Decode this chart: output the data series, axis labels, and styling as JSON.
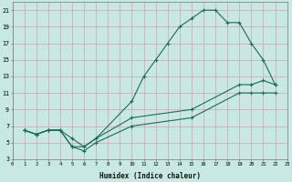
{
  "xlabel": "Humidex (Indice chaleur)",
  "bg_color": "#c8e8e4",
  "grid_color": "#d4a0a8",
  "line_color": "#1a6b5a",
  "xlim": [
    0,
    23
  ],
  "ylim": [
    3,
    22
  ],
  "xtick_vals": [
    0,
    1,
    2,
    3,
    4,
    5,
    6,
    7,
    8,
    9,
    10,
    11,
    12,
    13,
    14,
    15,
    16,
    17,
    18,
    19,
    20,
    21,
    22,
    23
  ],
  "ytick_vals": [
    3,
    5,
    7,
    9,
    11,
    13,
    15,
    17,
    19,
    21
  ],
  "line1_x": [
    1,
    2,
    3,
    4,
    5,
    6,
    7,
    10,
    11,
    12,
    13,
    14,
    15,
    16,
    17,
    18,
    19,
    20,
    21,
    22
  ],
  "line1_y": [
    6.5,
    6.0,
    6.5,
    6.5,
    5.5,
    4.5,
    5.5,
    10.0,
    13.0,
    15.0,
    17.0,
    19.0,
    20.0,
    21.0,
    21.0,
    19.5,
    19.5,
    17.0,
    15.0,
    12.0
  ],
  "line2_x": [
    1,
    2,
    3,
    4,
    5,
    6,
    7,
    10,
    15,
    19,
    20,
    21,
    22
  ],
  "line2_y": [
    6.5,
    6.0,
    6.5,
    6.5,
    4.5,
    4.5,
    5.5,
    8.0,
    9.0,
    12.0,
    12.0,
    12.5,
    12.0
  ],
  "line3_x": [
    1,
    2,
    3,
    4,
    5,
    6,
    7,
    10,
    15,
    19,
    20,
    21,
    22
  ],
  "line3_y": [
    6.5,
    6.0,
    6.5,
    6.5,
    4.5,
    4.0,
    5.0,
    7.0,
    8.0,
    11.0,
    11.0,
    11.0,
    11.0
  ]
}
